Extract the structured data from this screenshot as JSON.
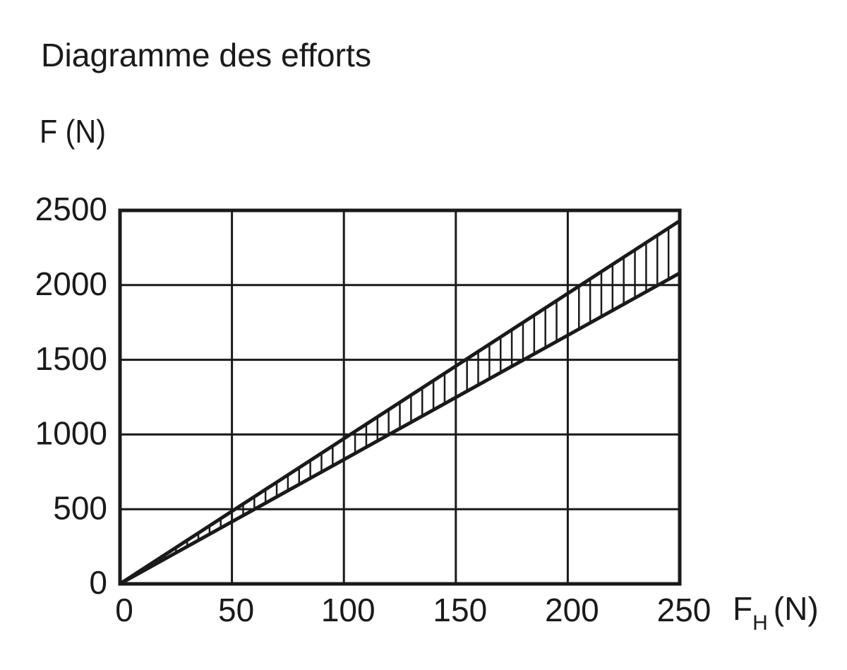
{
  "chart_data": {
    "type": "line",
    "title": "Diagramme des efforts",
    "y_label": "F (N)",
    "x_label": [
      "F",
      "H",
      "(N)"
    ],
    "x": [
      0,
      250
    ],
    "series": [
      {
        "color": "#1a1a1a",
        "values": [
          0,
          2430
        ]
      },
      {
        "color": "#1a1a1a",
        "values": [
          0,
          2080
        ]
      }
    ],
    "hatched_band": true,
    "xlim": [
      0,
      250
    ],
    "xticks": [
      0,
      50,
      100,
      150,
      200,
      250
    ],
    "ylim": [
      0,
      2500
    ],
    "yticks": [
      0,
      500,
      1000,
      1500,
      2000,
      2500
    ],
    "grid": true
  }
}
